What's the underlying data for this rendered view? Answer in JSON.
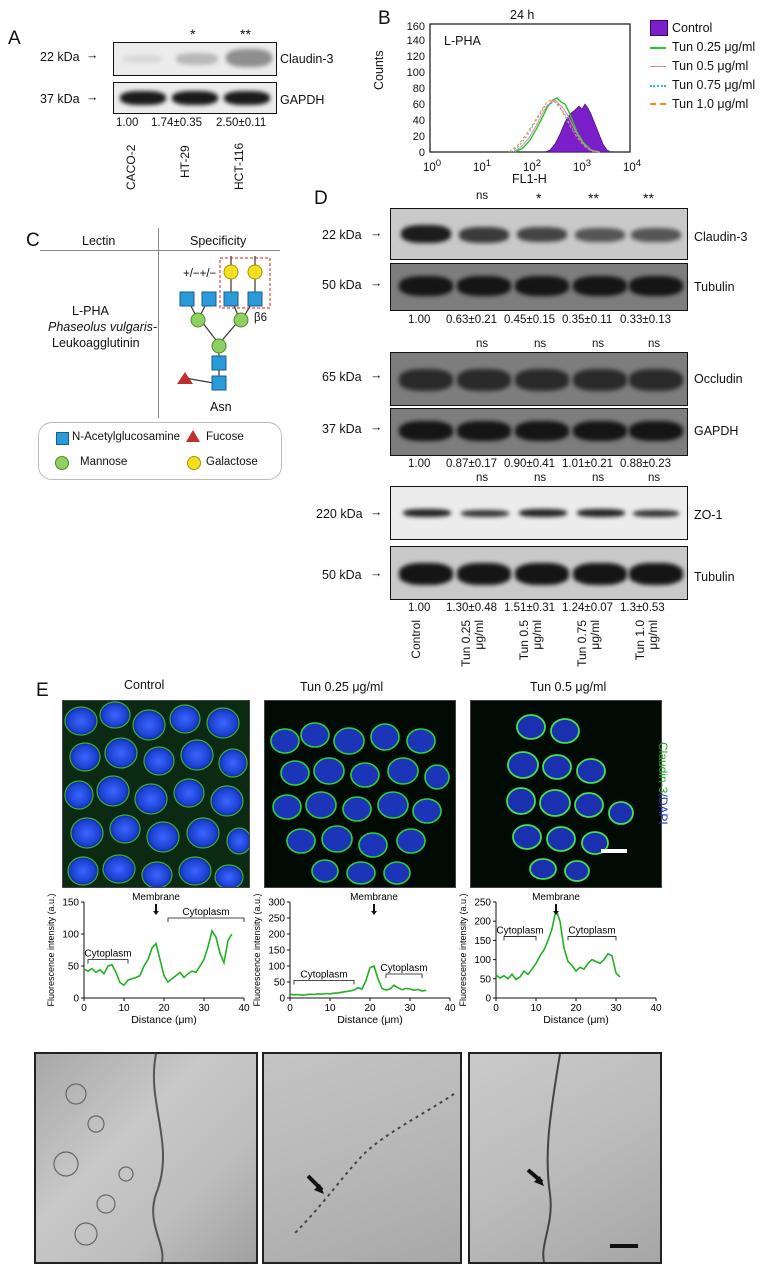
{
  "panelA": {
    "letter": "A",
    "marker_top": "22 kDa",
    "marker_bottom": "37 kDa",
    "protein_top": "Claudin-3",
    "protein_bottom": "GAPDH",
    "stars": [
      "",
      "*",
      "**"
    ],
    "values": [
      "1.00",
      "1.74±0.35",
      "2.50±0.11"
    ],
    "lanes": [
      "CACO-2",
      "HT-29",
      "HCT-116"
    ]
  },
  "panelB": {
    "letter": "B",
    "title": "24 h",
    "inset_label": "L-PHA",
    "ylabel": "Counts",
    "xlabel": "FL1-H",
    "yticks": [
      "0",
      "20",
      "40",
      "60",
      "80",
      "100",
      "120",
      "140",
      "160"
    ],
    "xticks_base": "10",
    "xticks_exp": [
      "0",
      "1",
      "2",
      "3",
      "4"
    ],
    "legend": [
      "Control",
      "Tun 0.25 μg/ml",
      "Tun 0.5 μg/ml",
      "Tun 0.75 μg/ml",
      "Tun 1.0 μg/ml"
    ],
    "colors": [
      "#7a1fc9",
      "#22cc22",
      "#f07ab8",
      "#2ab8d8",
      "#ff8c1a"
    ]
  },
  "panelC": {
    "letter": "C",
    "header_left": "Lectin",
    "header_right": "Specificity",
    "lectin_line1": "L-PHA",
    "lectin_line2": "Phaseolus vulgaris-",
    "lectin_line3": "Leukoagglutinin",
    "plusminus": "+/−+/−",
    "beta": "β6",
    "asn": "Asn",
    "legend": [
      "N-Acetylglucosamine",
      "Fucose",
      "Mannose",
      "Galactose"
    ]
  },
  "panelD": {
    "letter": "D",
    "blots": [
      {
        "marker": "22 kDa",
        "protein": "Claudin-3",
        "stars": [
          "",
          "ns",
          "*",
          "**",
          "**"
        ]
      },
      {
        "marker": "50 kDa",
        "protein": "Tubulin",
        "values": [
          "1.00",
          "0.63±0.21",
          "0.45±0.15",
          "0.35±0.11",
          "0.33±0.13"
        ]
      },
      {
        "marker": "65 kDa",
        "protein": "Occludin",
        "stars": [
          "",
          "ns",
          "ns",
          "ns",
          "ns"
        ]
      },
      {
        "marker": "37 kDa",
        "protein": "GAPDH",
        "values": [
          "1.00",
          "0.87±0.17",
          "0.90±0.41",
          "1.01±0.21",
          "0.88±0.23"
        ]
      },
      {
        "marker": "220 kDa",
        "protein": "ZO-1",
        "stars": [
          "",
          "ns",
          "ns",
          "ns",
          "ns"
        ]
      },
      {
        "marker": "50 kDa",
        "protein": "Tubulin",
        "values": [
          "1.00",
          "1.30±0.48",
          "1.51±0.31",
          "1.24±0.07",
          "1.3±0.53"
        ]
      }
    ],
    "lanes": [
      {
        "l1": "Control",
        "l2": ""
      },
      {
        "l1": "Tun 0.25",
        "l2": "μg/ml"
      },
      {
        "l1": "Tun 0.5",
        "l2": "μg/ml"
      },
      {
        "l1": "Tun 0.75",
        "l2": "μg/ml"
      },
      {
        "l1": "Tun 1.0",
        "l2": "μg/ml"
      }
    ]
  },
  "panelE": {
    "letter": "E",
    "titles": [
      "Control",
      "Tun 0.25 μg/ml",
      "Tun 0.5 μg/ml"
    ],
    "side_label_green": "Claudin-3",
    "side_label_blue": "/DAPI",
    "ylabel": "Fluorescence intensity (a.u.)",
    "xlabel": "Distance (μm)",
    "membrane": "Membrane",
    "cytoplasm": "Cytoplasm"
  },
  "chart_data": [
    {
      "type": "line",
      "title": "Control",
      "xlabel": "Distance (μm)",
      "ylabel": "Fluorescence intensity (a.u.)",
      "xlim": [
        0,
        40
      ],
      "ylim": [
        0,
        150
      ],
      "xticks": [
        0,
        10,
        20,
        30,
        40
      ],
      "yticks": [
        0,
        50,
        100,
        150
      ],
      "x": [
        0,
        1,
        2,
        3,
        4,
        5,
        6,
        7,
        8,
        9,
        10,
        11,
        12,
        13,
        14,
        15,
        16,
        17,
        18,
        19,
        20,
        21,
        22,
        23,
        24,
        25,
        26,
        27,
        28,
        29,
        30,
        31,
        32,
        33,
        34,
        35,
        36,
        37
      ],
      "y": [
        45,
        42,
        46,
        40,
        44,
        38,
        50,
        52,
        40,
        24,
        20,
        28,
        30,
        32,
        35,
        50,
        60,
        78,
        85,
        60,
        35,
        25,
        30,
        35,
        40,
        32,
        38,
        42,
        40,
        50,
        60,
        80,
        105,
        95,
        70,
        55,
        90,
        100
      ]
    },
    {
      "type": "line",
      "title": "Tun 0.25 μg/ml",
      "xlabel": "Distance (μm)",
      "ylabel": "Fluorescence intensity (a.u.)",
      "xlim": [
        0,
        40
      ],
      "ylim": [
        0,
        300
      ],
      "xticks": [
        0,
        10,
        20,
        30,
        40
      ],
      "yticks": [
        0,
        50,
        100,
        150,
        200,
        250,
        300
      ],
      "x": [
        0,
        1,
        2,
        3,
        4,
        5,
        6,
        7,
        8,
        9,
        10,
        11,
        12,
        13,
        14,
        15,
        16,
        17,
        18,
        19,
        20,
        21,
        22,
        23,
        24,
        25,
        26,
        27,
        28,
        29,
        30,
        31,
        32,
        33,
        34
      ],
      "y": [
        12,
        10,
        11,
        9,
        10,
        12,
        11,
        13,
        12,
        14,
        13,
        15,
        16,
        18,
        20,
        22,
        25,
        32,
        28,
        55,
        95,
        100,
        60,
        30,
        25,
        28,
        40,
        32,
        26,
        30,
        28,
        24,
        27,
        22,
        24
      ]
    },
    {
      "type": "line",
      "title": "Tun 0.5 μg/ml",
      "xlabel": "Distance (μm)",
      "ylabel": "Fluorescence intensity (a.u.)",
      "xlim": [
        0,
        40
      ],
      "ylim": [
        0,
        250
      ],
      "xticks": [
        0,
        10,
        20,
        30,
        40
      ],
      "yticks": [
        0,
        50,
        100,
        150,
        200,
        250
      ],
      "x": [
        0,
        1,
        2,
        3,
        4,
        5,
        6,
        7,
        8,
        9,
        10,
        11,
        12,
        13,
        14,
        15,
        16,
        17,
        18,
        19,
        20,
        21,
        22,
        23,
        24,
        25,
        26,
        27,
        28,
        29,
        30,
        31
      ],
      "y": [
        60,
        52,
        58,
        50,
        62,
        48,
        55,
        70,
        62,
        75,
        90,
        110,
        125,
        150,
        180,
        230,
        200,
        130,
        95,
        85,
        70,
        80,
        75,
        90,
        100,
        95,
        90,
        100,
        115,
        110,
        65,
        55
      ]
    }
  ]
}
